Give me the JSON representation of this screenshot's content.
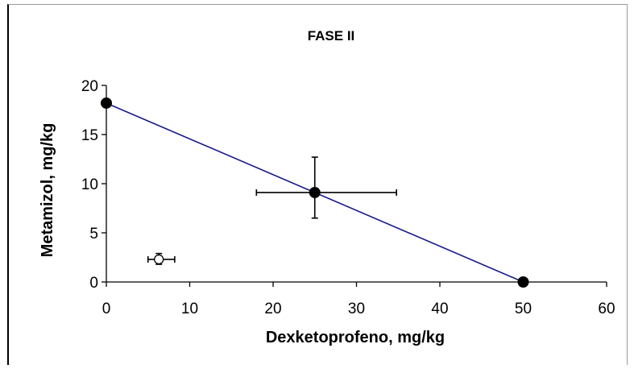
{
  "chart_data": {
    "type": "scatter",
    "title": "FASE II",
    "xlabel": "Dexketoprofeno, mg/kg",
    "ylabel": "Metamizol, mg/kg",
    "xlim": [
      0,
      60
    ],
    "ylim": [
      0,
      20
    ],
    "x_ticks": [
      "0",
      "10",
      "20",
      "30",
      "40",
      "50",
      "60"
    ],
    "y_ticks": [
      "0",
      "5",
      "10",
      "15",
      "20"
    ],
    "grid": false,
    "legend": "none",
    "colors": {
      "line": "#1a1a8c",
      "marker": "#000000",
      "open_marker_fill": "#ffffff"
    },
    "series": [
      {
        "type": "line",
        "x": [
          0,
          50
        ],
        "y": [
          18.2,
          0
        ]
      },
      {
        "type": "scatter",
        "marker": "filled-circle",
        "points": [
          {
            "x": 0,
            "y": 18.2
          },
          {
            "x": 25,
            "y": 9.1,
            "x_err": [
              18.0,
              34.8
            ],
            "y_err": [
              6.5,
              12.7
            ]
          },
          {
            "x": 50,
            "y": 0
          }
        ]
      },
      {
        "type": "scatter",
        "marker": "open-circle",
        "points": [
          {
            "x": 6.3,
            "y": 2.3,
            "x_err": [
              5.0,
              8.2
            ],
            "y_err": [
              1.8,
              2.9
            ]
          }
        ]
      }
    ]
  }
}
